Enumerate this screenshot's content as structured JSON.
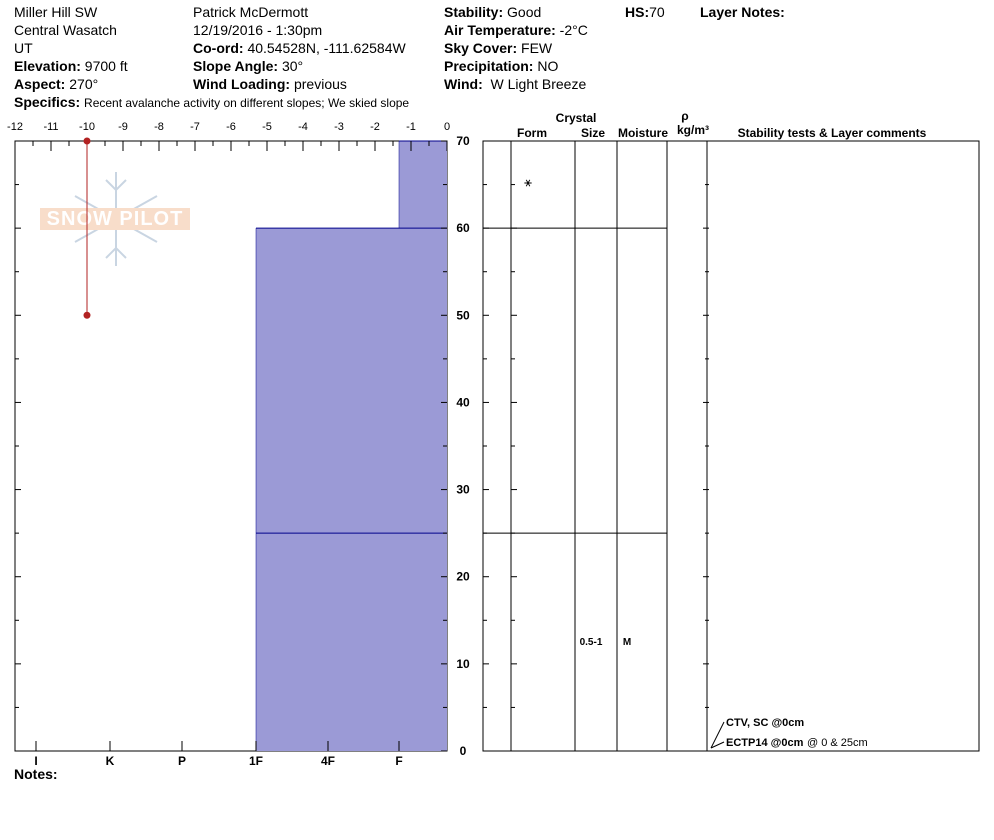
{
  "header": {
    "location": "Miller Hill SW",
    "range": "Central Wasatch",
    "state": "UT",
    "elevation_label": "Elevation:",
    "elevation_value": "9700 ft",
    "aspect_label": "Aspect:",
    "aspect_value": "270°",
    "observer": "Patrick McDermott",
    "datetime": "12/19/2016 - 1:30pm",
    "coord_label": "Co-ord:",
    "coord_value": "40.54528N, -111.62584W",
    "slope_label": "Slope Angle:",
    "slope_value": "30°",
    "wind_loading_label": "Wind Loading:",
    "wind_loading_value": "previous",
    "stability_label": "Stability:",
    "stability_value": "Good",
    "air_temp_label": "Air Temperature:",
    "air_temp_value": "-2°C",
    "sky_label": "Sky Cover:",
    "sky_value": "FEW",
    "precip_label": "Precipitation:",
    "precip_value": "NO",
    "wind_label": "Wind:",
    "wind_value": "W Light Breeze",
    "hs_label": "HS:",
    "hs_value": "70",
    "layer_notes_label": "Layer Notes:",
    "specifics_label": "Specifics:",
    "specifics_value": "Recent avalanche activity on different slopes;  We skied slope"
  },
  "watermark": {
    "text": "SNOW PILOT"
  },
  "columns": {
    "crystal": "Crystal",
    "form": "Form",
    "size": "Size",
    "moisture": "Moisture",
    "rho": "ρ",
    "density_unit": "kg/m³",
    "comments": "Stability tests & Layer comments"
  },
  "notes_label": "Notes:",
  "chart_data": {
    "type": "snow_profile",
    "temperature_axis": {
      "ticks": [
        "-12",
        "-11",
        "-10",
        "-9",
        "-8",
        "-7",
        "-6",
        "-5",
        "-4",
        "-3",
        "-2",
        "-1",
        "0"
      ],
      "min": -12,
      "max": 0,
      "unit": "°C"
    },
    "hardness_axis": {
      "labels": [
        "I",
        "K",
        "P",
        "1F",
        "4F",
        "F"
      ],
      "levels": [
        "F",
        "4F",
        "1F",
        "P",
        "K",
        "I"
      ]
    },
    "depth_axis": {
      "ticks": [
        "70",
        "60",
        "50",
        "40",
        "30",
        "20",
        "10",
        "0"
      ],
      "min": 0,
      "max": 70,
      "unit": "cm"
    },
    "temperature_profile": [
      {
        "depth": 70,
        "temp": -10
      },
      {
        "depth": 50,
        "temp": -10
      }
    ],
    "layers": [
      {
        "top": 70,
        "bottom": 60,
        "hardness": "F",
        "form_symbol": "⚹",
        "size": "",
        "moisture": ""
      },
      {
        "top": 60,
        "bottom": 25,
        "hardness": "1F",
        "form_symbol": "",
        "size": "",
        "moisture": ""
      },
      {
        "top": 25,
        "bottom": 0,
        "hardness": "1F",
        "form_symbol": "",
        "size": "0.5-1",
        "moisture": "M"
      }
    ],
    "tests": [
      {
        "depth": 0,
        "text": "CTV, SC @0cm",
        "extra": ""
      },
      {
        "depth": 0,
        "text": "ECTP14 @0cm",
        "extra": "@ 0 & 25cm"
      }
    ],
    "colors": {
      "hardness_fill": "#9b9ad6",
      "layer_line": "#00008b",
      "temp_line": "#b22222"
    }
  }
}
